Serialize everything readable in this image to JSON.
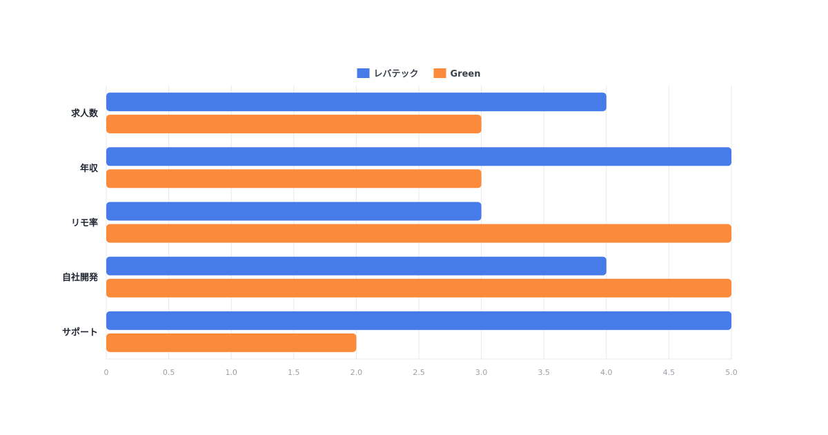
{
  "chart_data": {
    "type": "bar",
    "orientation": "horizontal",
    "categories": [
      "求人数",
      "年収",
      "リモ率",
      "自社開発",
      "サポート"
    ],
    "series": [
      {
        "name": "レバテック",
        "color": "#487BEA",
        "values": [
          4,
          5,
          3,
          4,
          5
        ]
      },
      {
        "name": "Green",
        "color": "#FB8A3A",
        "values": [
          3,
          3,
          5,
          5,
          2
        ]
      }
    ],
    "xlim": [
      0,
      5
    ],
    "x_ticks": [
      "0",
      "0.5",
      "1.0",
      "1.5",
      "2.0",
      "2.5",
      "3.0",
      "3.5",
      "4.0",
      "4.5",
      "5.0"
    ],
    "grid": true,
    "legend_position": "top-center",
    "title": "",
    "xlabel": "",
    "ylabel": ""
  }
}
